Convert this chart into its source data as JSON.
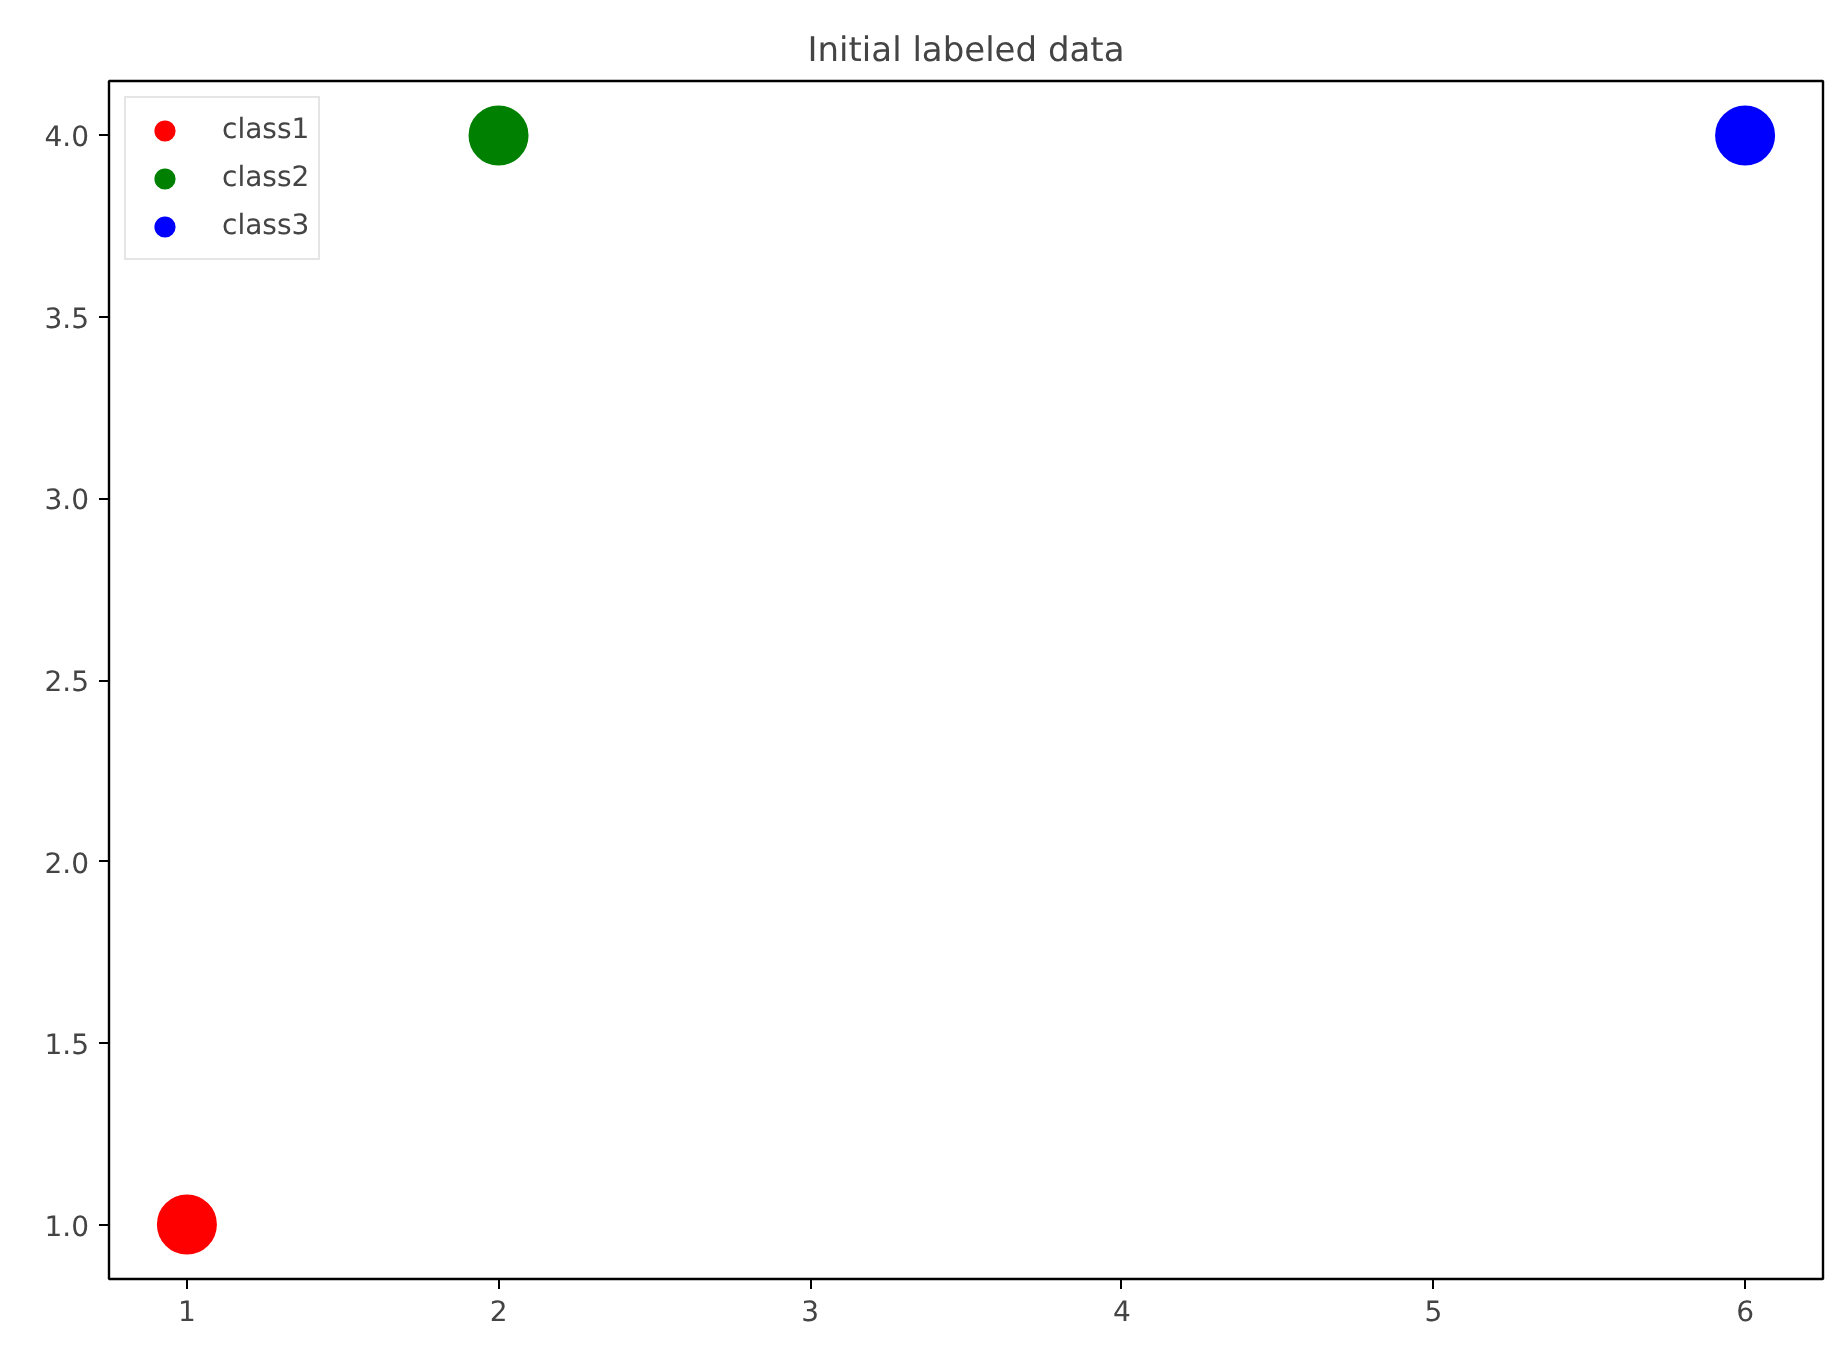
{
  "chart_data": {
    "type": "scatter",
    "title": "Initial labeled data",
    "xlim": [
      0.75,
      6.25
    ],
    "ylim": [
      0.85,
      4.15
    ],
    "xticks": [
      1,
      2,
      3,
      4,
      5,
      6
    ],
    "yticks": [
      {
        "value": 1,
        "label": "1.0"
      },
      {
        "value": 1.5,
        "label": "1.5"
      },
      {
        "value": 2,
        "label": "2.0"
      },
      {
        "value": 2.5,
        "label": "2.5"
      },
      {
        "value": 3,
        "label": "3.0"
      },
      {
        "value": 3.5,
        "label": "3.5"
      },
      {
        "value": 4,
        "label": "4.0"
      }
    ],
    "series": [
      {
        "name": "class1",
        "color": "#ff0000",
        "x": [
          1
        ],
        "values": [
          1
        ]
      },
      {
        "name": "class2",
        "color": "#008000",
        "x": [
          2
        ],
        "values": [
          4
        ]
      },
      {
        "name": "class3",
        "color": "#0000ff",
        "x": [
          6
        ],
        "values": [
          4
        ]
      }
    ],
    "legend": "top left",
    "grid": false,
    "marker": "circle"
  }
}
